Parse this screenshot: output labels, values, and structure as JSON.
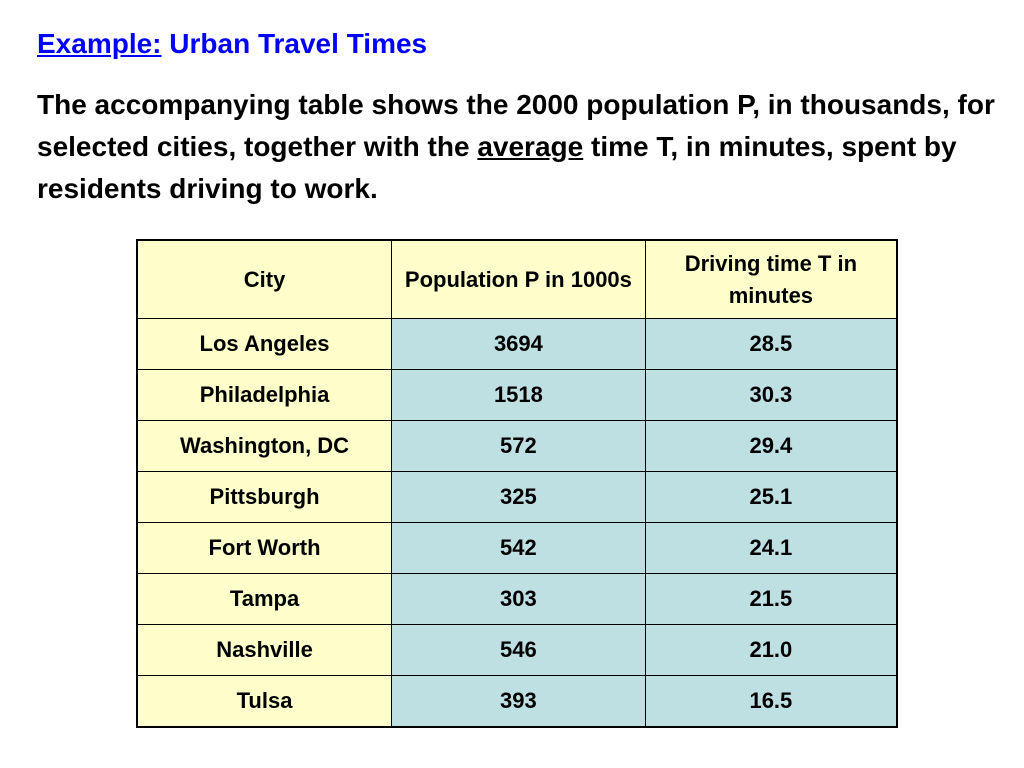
{
  "colors": {
    "title": "#0000ff",
    "header_bg": "#ffffcc",
    "city_bg": "#ffffcc",
    "value_bg": "#bfe0e3",
    "border": "#000000"
  },
  "title": {
    "prefix": "Example:",
    "text": "Urban Travel Times"
  },
  "intro": {
    "before": "The accompanying table shows the 2000 population P, in thousands, for selected cities, together with the ",
    "emphasis": "average",
    "after": " time T, in minutes, spent by residents driving to work."
  },
  "table": {
    "headers": [
      "City",
      "Population P in 1000s",
      "Driving time T in minutes"
    ],
    "rows": [
      [
        "Los Angeles",
        "3694",
        "28.5"
      ],
      [
        "Philadelphia",
        "1518",
        "30.3"
      ],
      [
        "Washington, DC",
        "572",
        "29.4"
      ],
      [
        "Pittsburgh",
        "325",
        "25.1"
      ],
      [
        "Fort Worth",
        "542",
        "24.1"
      ],
      [
        "Tampa",
        "303",
        "21.5"
      ],
      [
        "Nashville",
        "546",
        "21.0"
      ],
      [
        "Tulsa",
        "393",
        "16.5"
      ]
    ]
  }
}
